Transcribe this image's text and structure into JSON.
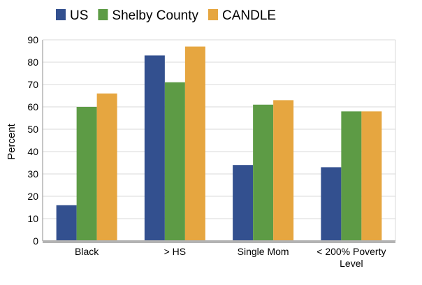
{
  "chart_data": {
    "type": "bar",
    "categories": [
      "Black",
      "> HS",
      "Single Mom",
      "< 200% Poverty Level"
    ],
    "series": [
      {
        "name": "US",
        "color": "#33508f",
        "values": [
          16,
          83,
          34,
          33
        ]
      },
      {
        "name": "Shelby County",
        "color": "#5d9b45",
        "values": [
          60,
          71,
          61,
          58
        ]
      },
      {
        "name": "CANDLE",
        "color": "#e6a640",
        "values": [
          66,
          87,
          63,
          58
        ]
      }
    ],
    "ylabel": "Percent",
    "xlabel": "",
    "ylim": [
      0,
      90
    ],
    "yticks": [
      0,
      10,
      20,
      30,
      40,
      50,
      60,
      70,
      80,
      90
    ],
    "grid": true,
    "legend_position": "top"
  }
}
